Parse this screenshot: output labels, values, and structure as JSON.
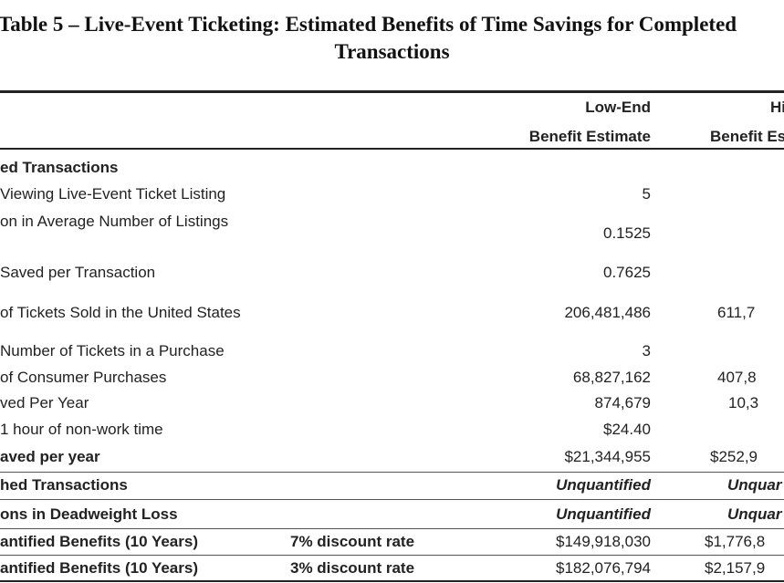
{
  "title": {
    "line1": "Table 5 – Live-Event Ticketing: Estimated Benefits of Time Savings for Completed",
    "line2": "Transactions"
  },
  "header": {
    "low": [
      "Low-End",
      "Benefit Estimate"
    ],
    "high": [
      "Hi",
      "Benefit Es"
    ]
  },
  "rows": [
    {
      "label": "ed Transactions",
      "low": "",
      "high": ""
    },
    {
      "label": "Viewing Live-Event Ticket Listing",
      "low": "5",
      "high": ""
    },
    {
      "label": "on in Average Number of Listings",
      "low": "0.1525",
      "high": ""
    },
    {
      "label": "Saved per Transaction",
      "low": "0.7625",
      "high": ""
    },
    {
      "label": "of Tickets Sold in the United States",
      "low": "206,481,486",
      "high": "611,7"
    },
    {
      "label": "Number of Tickets in a Purchase",
      "low": "3",
      "high": ""
    },
    {
      "label": "of Consumer Purchases",
      "low": "68,827,162",
      "high": "407,8"
    },
    {
      "label": "ved Per Year",
      "low": "874,679",
      "high": "10,3"
    },
    {
      "label": "1 hour of non-work time",
      "low": "$24.40",
      "high": ""
    },
    {
      "label": "aved per year",
      "low": "$21,344,955",
      "high": "$252,9"
    },
    {
      "label": "hed Transactions",
      "low": "Unquantified",
      "high": "Unquar"
    },
    {
      "label": "ons in Deadweight Loss",
      "low": "Unquantified",
      "high": "Unquar"
    },
    {
      "label": "antified Benefits (10 Years)",
      "mid": "7% discount rate",
      "low": "$149,918,030",
      "high": "$1,776,8"
    },
    {
      "label": "antified Benefits (10 Years)",
      "mid": "3% discount rate",
      "low": "$182,076,794",
      "high": "$2,157,9"
    }
  ]
}
